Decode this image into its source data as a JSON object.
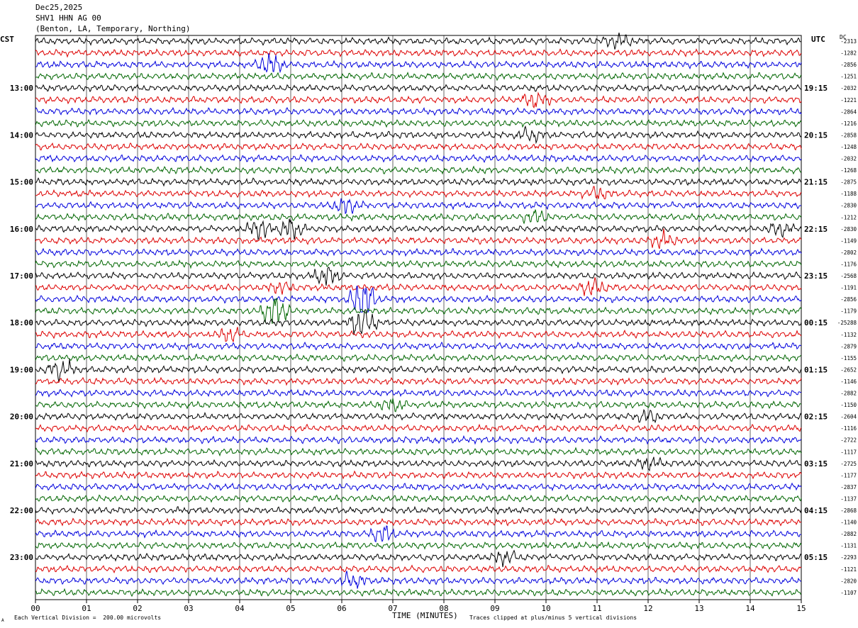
{
  "header": {
    "date": "Dec25,2025",
    "station": "SHV1 HHN AG 00",
    "location": "(Benton, LA, Temporary, Northing)"
  },
  "left_axis_label": "CST",
  "right_axis_label": "UTC",
  "dc_label": "DC",
  "footer": {
    "scale_note": "Each Vertical Division =  200.00 microvolts",
    "clip_note": "Traces clipped at plus/minus 5 vertical divisions",
    "corner_mark": "A"
  },
  "colors": {
    "trace_cycle": [
      "#000000",
      "#dd0000",
      "#0000dd",
      "#006600"
    ],
    "grid": "#000000",
    "background": "#ffffff"
  },
  "chart_data": {
    "type": "line",
    "title": "SHV1 HHN AG 00",
    "xlabel": "TIME (MINUTES)",
    "xlim": [
      0,
      15
    ],
    "x_ticks": [
      "00",
      "01",
      "02",
      "03",
      "04",
      "05",
      "06",
      "07",
      "08",
      "09",
      "10",
      "11",
      "12",
      "13",
      "14",
      "15"
    ],
    "trace_minutes_per_line": 15,
    "trace_count": 48,
    "left_hour_labels": [
      "13:00",
      "14:00",
      "15:00",
      "16:00",
      "17:00",
      "18:00",
      "19:00",
      "20:00",
      "21:00",
      "22:00",
      "23:00"
    ],
    "right_hour_labels": [
      "19:15",
      "20:15",
      "21:15",
      "22:15",
      "23:15",
      "00:15",
      "01:15",
      "02:15",
      "03:15",
      "04:15",
      "05:15"
    ],
    "hour_label_first_trace_index": 4,
    "hour_label_trace_step": 4,
    "dc_offsets": [
      "-2313",
      "-1282",
      "-2856",
      "-1251",
      "-2032",
      "-1221",
      "-2864",
      "-1216",
      "-2858",
      "-1248",
      "-2032",
      "-1268",
      "-2875",
      "-1188",
      "-2830",
      "-1212",
      "-2830",
      "-1149",
      "-2802",
      "-1176",
      "-2568",
      "-1191",
      "-2856",
      "-1179",
      "-25288",
      "-1132",
      "-2879",
      "-1155",
      "-2652",
      "-1146",
      "-2882",
      "-1150",
      "-2604",
      "-1116",
      "-2722",
      "-1117",
      "-2725",
      "-1177",
      "-2837",
      "-1137",
      "-2868",
      "-1140",
      "-2882",
      "-1131",
      "-2293",
      "-1121",
      "-2820",
      "-1107"
    ],
    "events": [
      {
        "trace": 0,
        "minute": 11.4,
        "amp": 2.0
      },
      {
        "trace": 2,
        "minute": 4.6,
        "amp": 3.5
      },
      {
        "trace": 5,
        "minute": 9.8,
        "amp": 2.5
      },
      {
        "trace": 8,
        "minute": 9.7,
        "amp": 2.2
      },
      {
        "trace": 13,
        "minute": 11.0,
        "amp": 2.0
      },
      {
        "trace": 14,
        "minute": 6.1,
        "amp": 2.6
      },
      {
        "trace": 15,
        "minute": 9.8,
        "amp": 2.0
      },
      {
        "trace": 16,
        "minute": 4.4,
        "amp": 3.0
      },
      {
        "trace": 16,
        "minute": 5.0,
        "amp": 3.0
      },
      {
        "trace": 16,
        "minute": 14.6,
        "amp": 2.0
      },
      {
        "trace": 17,
        "minute": 12.3,
        "amp": 2.5
      },
      {
        "trace": 20,
        "minute": 5.7,
        "amp": 3.0
      },
      {
        "trace": 21,
        "minute": 4.8,
        "amp": 2.0
      },
      {
        "trace": 21,
        "minute": 10.9,
        "amp": 2.5
      },
      {
        "trace": 22,
        "minute": 6.4,
        "amp": 7.0
      },
      {
        "trace": 23,
        "minute": 4.7,
        "amp": 5.5
      },
      {
        "trace": 24,
        "minute": 6.4,
        "amp": 5.0
      },
      {
        "trace": 25,
        "minute": 3.8,
        "amp": 2.2
      },
      {
        "trace": 28,
        "minute": 0.5,
        "amp": 3.5
      },
      {
        "trace": 31,
        "minute": 7.0,
        "amp": 2.0
      },
      {
        "trace": 32,
        "minute": 12.0,
        "amp": 2.0
      },
      {
        "trace": 36,
        "minute": 12.0,
        "amp": 1.8
      },
      {
        "trace": 42,
        "minute": 6.8,
        "amp": 2.5
      },
      {
        "trace": 44,
        "minute": 9.2,
        "amp": 2.0
      },
      {
        "trace": 46,
        "minute": 6.2,
        "amp": 2.2
      }
    ]
  }
}
